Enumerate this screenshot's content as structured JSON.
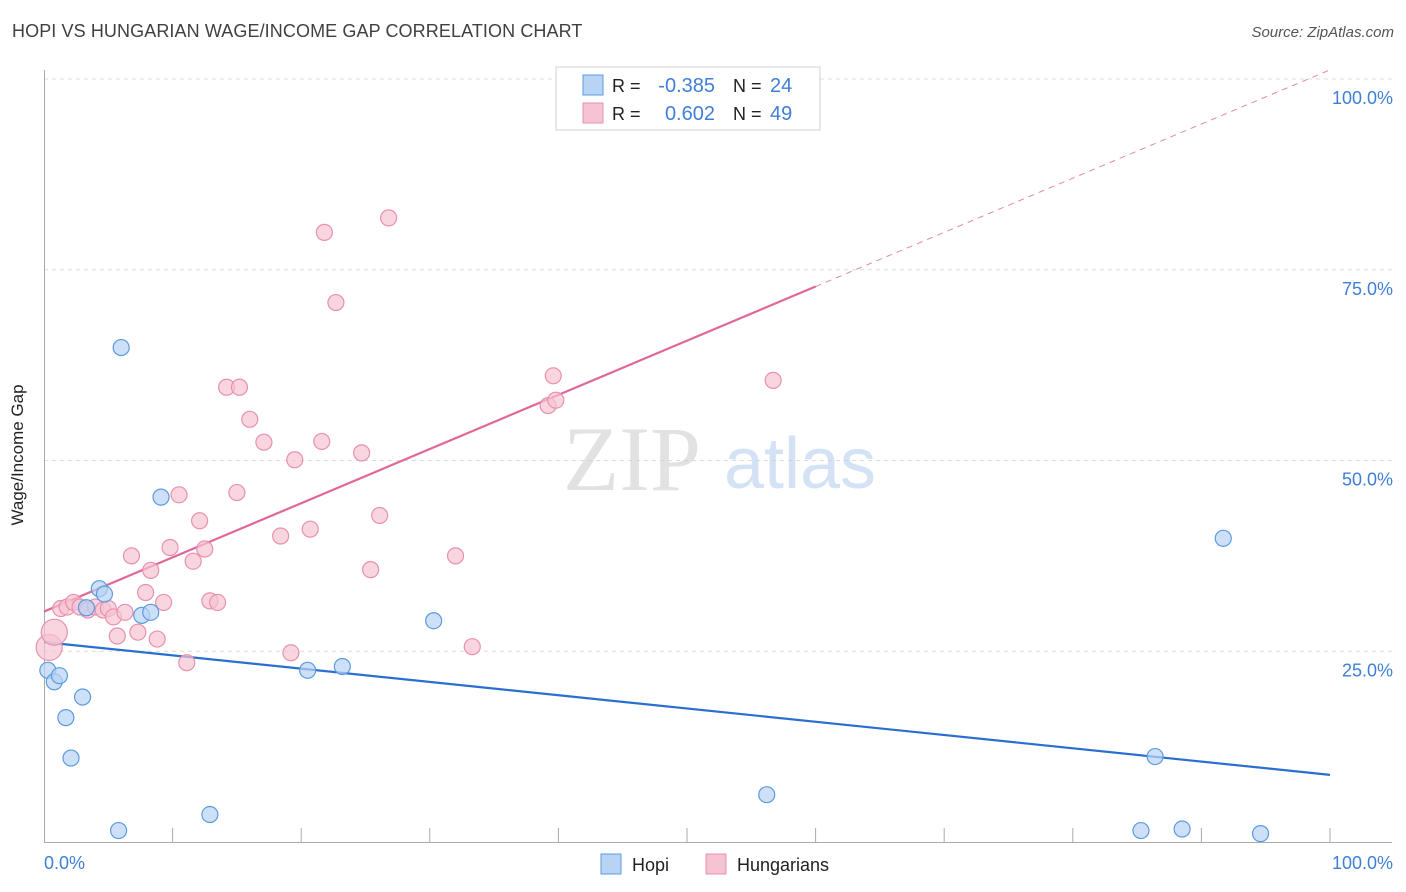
{
  "header": {
    "title": "HOPI VS HUNGARIAN WAGE/INCOME GAP CORRELATION CHART",
    "source": "Source: ZipAtlas.com"
  },
  "watermark": {
    "zip": "ZIP",
    "atlas": "atlas"
  },
  "colors": {
    "hopi": "#5b9be0",
    "hopi_fill": "#b8d3f3",
    "hopi_line": "#2a6fd0",
    "hungarians": "#e891ad",
    "hungarians_fill": "#f6c3d3",
    "hungarians_line": "#e0679a",
    "value_text": "#3f7fd6",
    "grid": "#dcdcdc"
  },
  "legend": {
    "rows": [
      {
        "series": "Hopi",
        "r_label": "R =",
        "r_value": "-0.385",
        "n_label": "N =",
        "n_value": "24"
      },
      {
        "series": "Hungarians",
        "r_label": "R =",
        "r_value": "0.602",
        "n_label": "N =",
        "n_value": "49"
      }
    ]
  },
  "chart_data": {
    "type": "scatter",
    "title": "HOPI VS HUNGARIAN WAGE/INCOME GAP CORRELATION CHART",
    "xlabel": "",
    "ylabel": "Wage/Income Gap",
    "xlim": [
      0,
      100
    ],
    "ylim": [
      0,
      100
    ],
    "x_tick_labels": [
      "0.0%",
      "100.0%"
    ],
    "y_ticks": [
      25,
      50,
      75,
      100
    ],
    "y_tick_labels": [
      "25.0%",
      "50.0%",
      "75.0%",
      "100.0%"
    ],
    "grid": true,
    "legend_position": "bottom-center",
    "series": [
      {
        "name": "Hopi",
        "points": [
          [
            0.3,
            22.5
          ],
          [
            0.8,
            21.0
          ],
          [
            1.2,
            21.8
          ],
          [
            1.7,
            16.3
          ],
          [
            2.1,
            11.0
          ],
          [
            3.0,
            19.0
          ],
          [
            3.3,
            30.7
          ],
          [
            4.3,
            33.2
          ],
          [
            4.7,
            32.5
          ],
          [
            5.8,
            1.5
          ],
          [
            6.0,
            64.8
          ],
          [
            7.6,
            29.7
          ],
          [
            8.3,
            30.1
          ],
          [
            9.1,
            45.2
          ],
          [
            12.9,
            3.6
          ],
          [
            20.5,
            22.5
          ],
          [
            23.2,
            23.0
          ],
          [
            30.3,
            29.0
          ],
          [
            56.2,
            6.2
          ],
          [
            85.3,
            1.5
          ],
          [
            86.4,
            11.2
          ],
          [
            88.5,
            1.7
          ],
          [
            91.7,
            39.8
          ],
          [
            94.6,
            1.1
          ]
        ],
        "trend": {
          "x0": 0,
          "y0": 26.2,
          "x1": 100,
          "y1": 8.8
        }
      },
      {
        "name": "Hungarians",
        "points": [
          [
            0.4,
            25.5
          ],
          [
            0.8,
            27.5
          ],
          [
            1.3,
            30.6
          ],
          [
            1.8,
            30.8
          ],
          [
            2.3,
            31.4
          ],
          [
            2.8,
            30.8
          ],
          [
            3.4,
            30.4
          ],
          [
            4.0,
            30.8
          ],
          [
            4.6,
            30.4
          ],
          [
            5.0,
            30.6
          ],
          [
            5.4,
            29.5
          ],
          [
            5.7,
            27.0
          ],
          [
            6.3,
            30.1
          ],
          [
            6.8,
            37.5
          ],
          [
            7.3,
            27.5
          ],
          [
            7.9,
            32.7
          ],
          [
            8.3,
            35.6
          ],
          [
            8.8,
            26.6
          ],
          [
            9.3,
            31.4
          ],
          [
            9.8,
            38.6
          ],
          [
            10.5,
            45.5
          ],
          [
            11.1,
            23.5
          ],
          [
            11.6,
            36.8
          ],
          [
            12.1,
            42.1
          ],
          [
            12.5,
            38.4
          ],
          [
            12.9,
            31.6
          ],
          [
            13.5,
            31.4
          ],
          [
            14.2,
            59.6
          ],
          [
            15.0,
            45.8
          ],
          [
            15.2,
            59.6
          ],
          [
            16.0,
            55.4
          ],
          [
            17.1,
            52.4
          ],
          [
            18.4,
            40.1
          ],
          [
            19.2,
            24.8
          ],
          [
            19.5,
            50.1
          ],
          [
            20.7,
            41.0
          ],
          [
            21.6,
            52.5
          ],
          [
            21.8,
            79.9
          ],
          [
            22.7,
            70.7
          ],
          [
            24.7,
            51.0
          ],
          [
            25.4,
            35.7
          ],
          [
            26.1,
            42.8
          ],
          [
            26.8,
            81.8
          ],
          [
            32.0,
            37.5
          ],
          [
            33.3,
            25.6
          ],
          [
            39.2,
            57.2
          ],
          [
            39.6,
            61.1
          ],
          [
            39.8,
            57.9
          ],
          [
            56.7,
            60.5
          ]
        ],
        "trend": {
          "x0": 0,
          "y0": 30.2,
          "x1": 60,
          "y1": 72.8,
          "dashed_to_x": 100,
          "dashed_to_y": 101.2
        }
      }
    ]
  }
}
